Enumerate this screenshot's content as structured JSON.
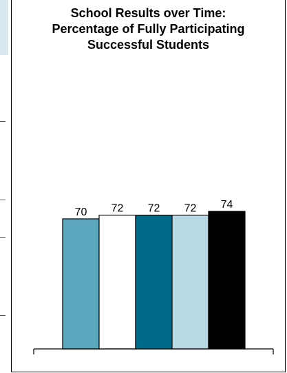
{
  "chart_data": {
    "type": "bar",
    "title_lines": [
      "School Results over Time:",
      "Percentage of Fully Participating",
      "Successful Students"
    ],
    "categories": [
      "",
      "",
      "",
      "",
      ""
    ],
    "values": [
      70,
      72,
      72,
      72,
      74
    ],
    "data_labels": [
      "70",
      "72",
      "72",
      "72",
      "74"
    ],
    "colors": [
      "#5ba8bf",
      "#ffffff",
      "#006b89",
      "#b8d8e3",
      "#000000"
    ],
    "bar_outline": "#000000",
    "ylim": [
      0,
      100
    ],
    "grid": false,
    "legend": "none",
    "xlabel": "",
    "ylabel": ""
  }
}
